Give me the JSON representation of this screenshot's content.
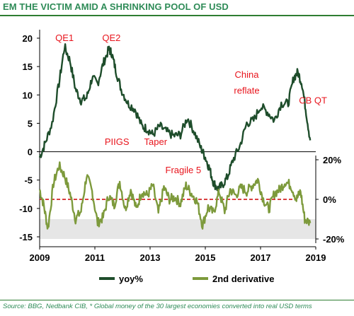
{
  "title": "EM THE VICTIM AMID A SHRINKING POOL OF USD",
  "source": "Source: BBG, Nedbank CIB, * Global money of the 30 largest economies converted into real USD terms",
  "colors": {
    "yoy": "#1e4d2b",
    "second_derivative": "#7d9a3c",
    "annotation": "#e8141c",
    "dashed": "#cc0000",
    "band": "#e6e6e6",
    "title": "#2e8b57"
  },
  "chart_data": {
    "type": "line",
    "x_ticks": [
      "2009",
      "2011",
      "2013",
      "2015",
      "2017",
      "2019"
    ],
    "y_left_ticks": [
      "20",
      "15",
      "10",
      "5",
      "0",
      "-5",
      "-10",
      "-15"
    ],
    "y_left_range": [
      -15,
      20
    ],
    "y_right_ticks": [
      "20%",
      "0%",
      "-20%"
    ],
    "y_right_range": [
      -20,
      20
    ],
    "x_range": [
      2009,
      2019
    ],
    "grid": false,
    "legend_position": "bottom",
    "reference_line_right": 0,
    "shaded_band_right": [
      -10,
      -20
    ],
    "annotations": [
      {
        "text": "QE1",
        "x": 2009.9,
        "y": 19.5
      },
      {
        "text": "QE2",
        "x": 2011.6,
        "y": 19.5
      },
      {
        "text": "PIIGS",
        "x": 2011.8,
        "y": 1.2
      },
      {
        "text": "Taper",
        "x": 2013.2,
        "y": 1.2
      },
      {
        "text": "China",
        "x": 2016.5,
        "y": 13.0
      },
      {
        "text": "reflate",
        "x": 2016.5,
        "y": 10.2
      },
      {
        "text": "CB QT",
        "x": 2018.9,
        "y": 8.5
      },
      {
        "text": "Fragile 5",
        "x": 2014.2,
        "y": -3.8
      }
    ],
    "series": [
      {
        "name": "yoy%",
        "axis": "left",
        "x": [
          2009.0,
          2009.2,
          2009.45,
          2009.7,
          2009.9,
          2010.1,
          2010.3,
          2010.5,
          2010.7,
          2010.9,
          2011.1,
          2011.3,
          2011.5,
          2011.6,
          2011.75,
          2011.95,
          2012.2,
          2012.45,
          2012.7,
          2012.9,
          2013.1,
          2013.35,
          2013.6,
          2013.85,
          2014.1,
          2014.35,
          2014.6,
          2014.85,
          2015.0,
          2015.15,
          2015.3,
          2015.45,
          2015.6,
          2015.8,
          2016.0,
          2016.25,
          2016.5,
          2016.75,
          2017.0,
          2017.25,
          2017.5,
          2017.75,
          2018.0,
          2018.2,
          2018.35,
          2018.5,
          2018.65,
          2018.8
        ],
        "values": [
          -1.0,
          1.5,
          5.0,
          12.0,
          18.5,
          16.0,
          11.0,
          9.0,
          9.5,
          13.0,
          12.0,
          15.5,
          18.0,
          17.5,
          14.5,
          11.0,
          8.5,
          7.5,
          4.5,
          4.0,
          3.0,
          4.5,
          3.5,
          2.8,
          3.0,
          6.0,
          3.5,
          0.5,
          -1.0,
          -3.0,
          -5.5,
          -6.5,
          -6.0,
          -4.5,
          -1.5,
          1.0,
          5.0,
          5.5,
          8.0,
          7.0,
          5.5,
          8.5,
          8.5,
          13.0,
          14.0,
          12.0,
          7.0,
          2.0
        ]
      },
      {
        "name": "2nd derivative",
        "axis": "right",
        "x": [
          2009.0,
          2009.15,
          2009.3,
          2009.5,
          2009.7,
          2009.9,
          2010.1,
          2010.3,
          2010.5,
          2010.7,
          2010.9,
          2011.1,
          2011.3,
          2011.5,
          2011.7,
          2011.9,
          2012.1,
          2012.3,
          2012.5,
          2012.7,
          2012.9,
          2013.1,
          2013.3,
          2013.5,
          2013.7,
          2013.9,
          2014.1,
          2014.3,
          2014.5,
          2014.7,
          2014.9,
          2015.1,
          2015.3,
          2015.5,
          2015.7,
          2015.9,
          2016.1,
          2016.3,
          2016.5,
          2016.7,
          2016.9,
          2017.1,
          2017.3,
          2017.5,
          2017.7,
          2017.9,
          2018.1,
          2018.3,
          2018.45,
          2018.6,
          2018.8
        ],
        "values": [
          5.0,
          -3.0,
          -15.0,
          8.0,
          17.0,
          12.0,
          3.0,
          -10.0,
          -6.0,
          12.0,
          4.0,
          -12.0,
          -9.0,
          2.0,
          -3.0,
          9.0,
          -5.0,
          5.0,
          -5.0,
          4.0,
          2.0,
          7.0,
          -7.0,
          6.0,
          0.0,
          1.0,
          -2.0,
          7.0,
          3.0,
          -1.0,
          -13.0,
          -4.0,
          -7.0,
          4.0,
          -6.0,
          5.0,
          2.0,
          6.0,
          4.0,
          7.0,
          10.0,
          0.0,
          -5.0,
          3.0,
          5.0,
          9.0,
          7.0,
          0.0,
          4.0,
          -10.0,
          -12.0
        ]
      }
    ]
  },
  "legend": [
    {
      "label": "yoy%",
      "color": "#1e4d2b"
    },
    {
      "label": "2nd derivative",
      "color": "#7d9a3c"
    }
  ]
}
